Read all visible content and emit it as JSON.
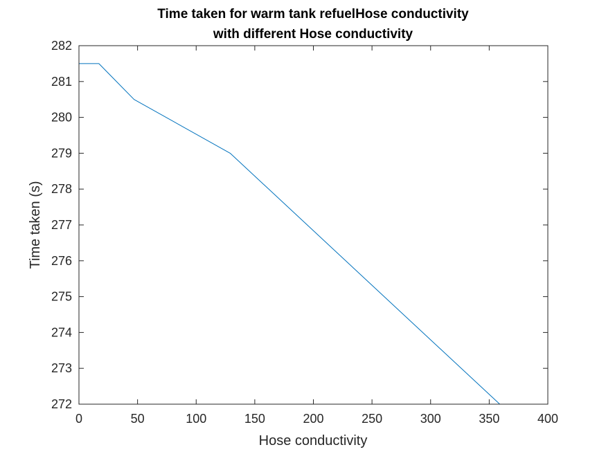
{
  "chart_data": {
    "type": "line",
    "title_lines": [
      "Time taken for warm tank refuelHose conductivity",
      "with different Hose conductivity"
    ],
    "xlabel": "Hose conductivity",
    "ylabel": "Time taken (s)",
    "xlim": [
      0,
      400
    ],
    "ylim": [
      272,
      282
    ],
    "xticks": [
      0,
      50,
      100,
      150,
      200,
      250,
      300,
      350,
      400
    ],
    "yticks": [
      272,
      273,
      274,
      275,
      276,
      277,
      278,
      279,
      280,
      281,
      282
    ],
    "grid": false,
    "series": [
      {
        "color": "#0072bd",
        "x": [
          0,
          0,
          17,
          47,
          129,
          359
        ],
        "y": [
          281.0,
          281.5,
          281.5,
          280.5,
          279.0,
          272.0
        ]
      }
    ]
  }
}
